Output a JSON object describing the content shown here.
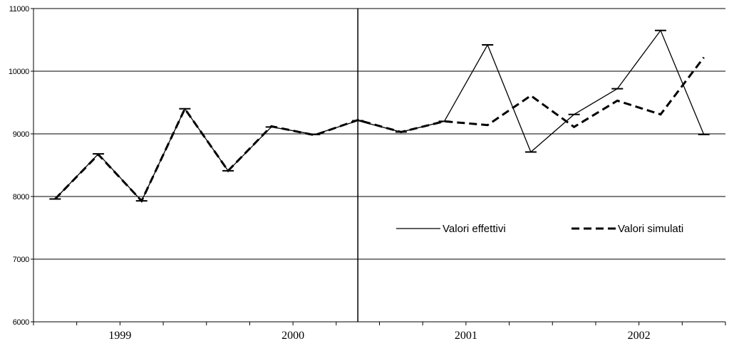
{
  "chart_data": {
    "type": "line",
    "title": "",
    "xlabel": "",
    "ylabel": "",
    "ylim": [
      6000,
      11000
    ],
    "yticks": [
      6000,
      7000,
      8000,
      9000,
      10000,
      11000
    ],
    "year_labels": [
      "1999",
      "2000",
      "2001",
      "2002"
    ],
    "grid": true,
    "legend_position": "right",
    "divider_after_period": 7,
    "series": [
      {
        "name": "Valori effettivi",
        "style": "solid",
        "color": "#000000",
        "values": [
          7960,
          8680,
          7930,
          9400,
          8410,
          9110,
          8990,
          9210,
          9030,
          9200,
          10420,
          8710,
          9310,
          9720,
          10650,
          8990
        ]
      },
      {
        "name": "Valori simulati",
        "style": "dashed",
        "color": "#000000",
        "values": [
          7960,
          8670,
          7930,
          9400,
          8410,
          9120,
          8980,
          9220,
          9030,
          9200,
          9140,
          9610,
          9110,
          9530,
          9310,
          10220
        ]
      }
    ]
  }
}
